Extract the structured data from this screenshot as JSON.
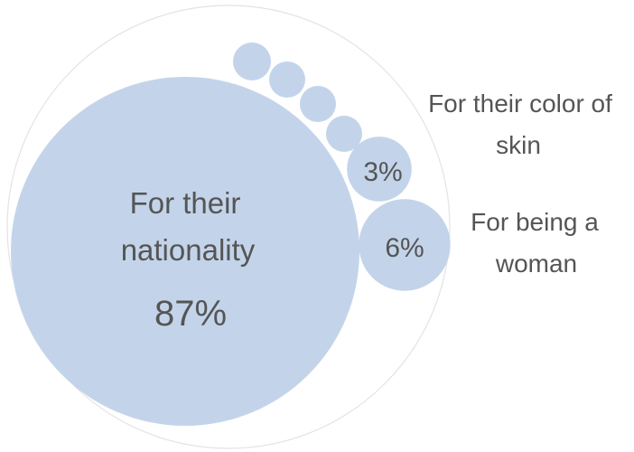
{
  "chart_data": {
    "type": "bubble",
    "title": "",
    "series": [
      {
        "category": "For their nationality",
        "label_lines": [
          "For their",
          "nationality"
        ],
        "value": 87,
        "value_label": "87%"
      },
      {
        "category": "For being a woman",
        "label_lines": [
          "For being a",
          "woman"
        ],
        "value": 6,
        "value_label": "6%"
      },
      {
        "category": "For their color of skin",
        "label_lines": [
          "For their color of",
          "skin"
        ],
        "value": 3,
        "value_label": "3%"
      }
    ],
    "colors": {
      "bubble_fill": "#c3d4ea",
      "outline": "#e3e3e3",
      "text": "#555555"
    }
  }
}
